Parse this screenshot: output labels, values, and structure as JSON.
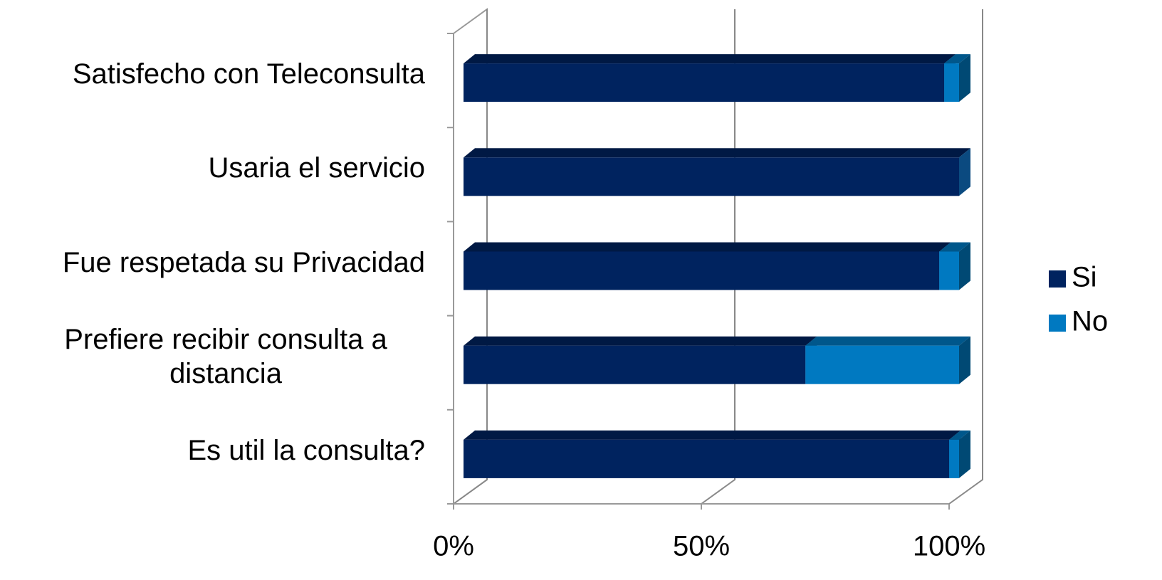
{
  "chart_data": {
    "type": "stacked-bar-3d",
    "categories": [
      "Satisfecho con Teleconsulta",
      "Usaria el servicio",
      "Fue respetada su Privacidad",
      "Prefiere recibir consulta a distancia",
      "Es util la consulta?"
    ],
    "series": [
      {
        "name": "Si",
        "color": "#00235f",
        "values": [
          97,
          100,
          96,
          69,
          98
        ]
      },
      {
        "name": "No",
        "color": "#0079c1",
        "values": [
          3,
          0,
          4,
          31,
          2
        ]
      }
    ],
    "xlim": [
      0,
      100
    ],
    "xticks": [
      {
        "value": 0,
        "label": "0%"
      },
      {
        "value": 50,
        "label": "50%"
      },
      {
        "value": 100,
        "label": "100%"
      }
    ],
    "grid": true,
    "legend": "right"
  }
}
